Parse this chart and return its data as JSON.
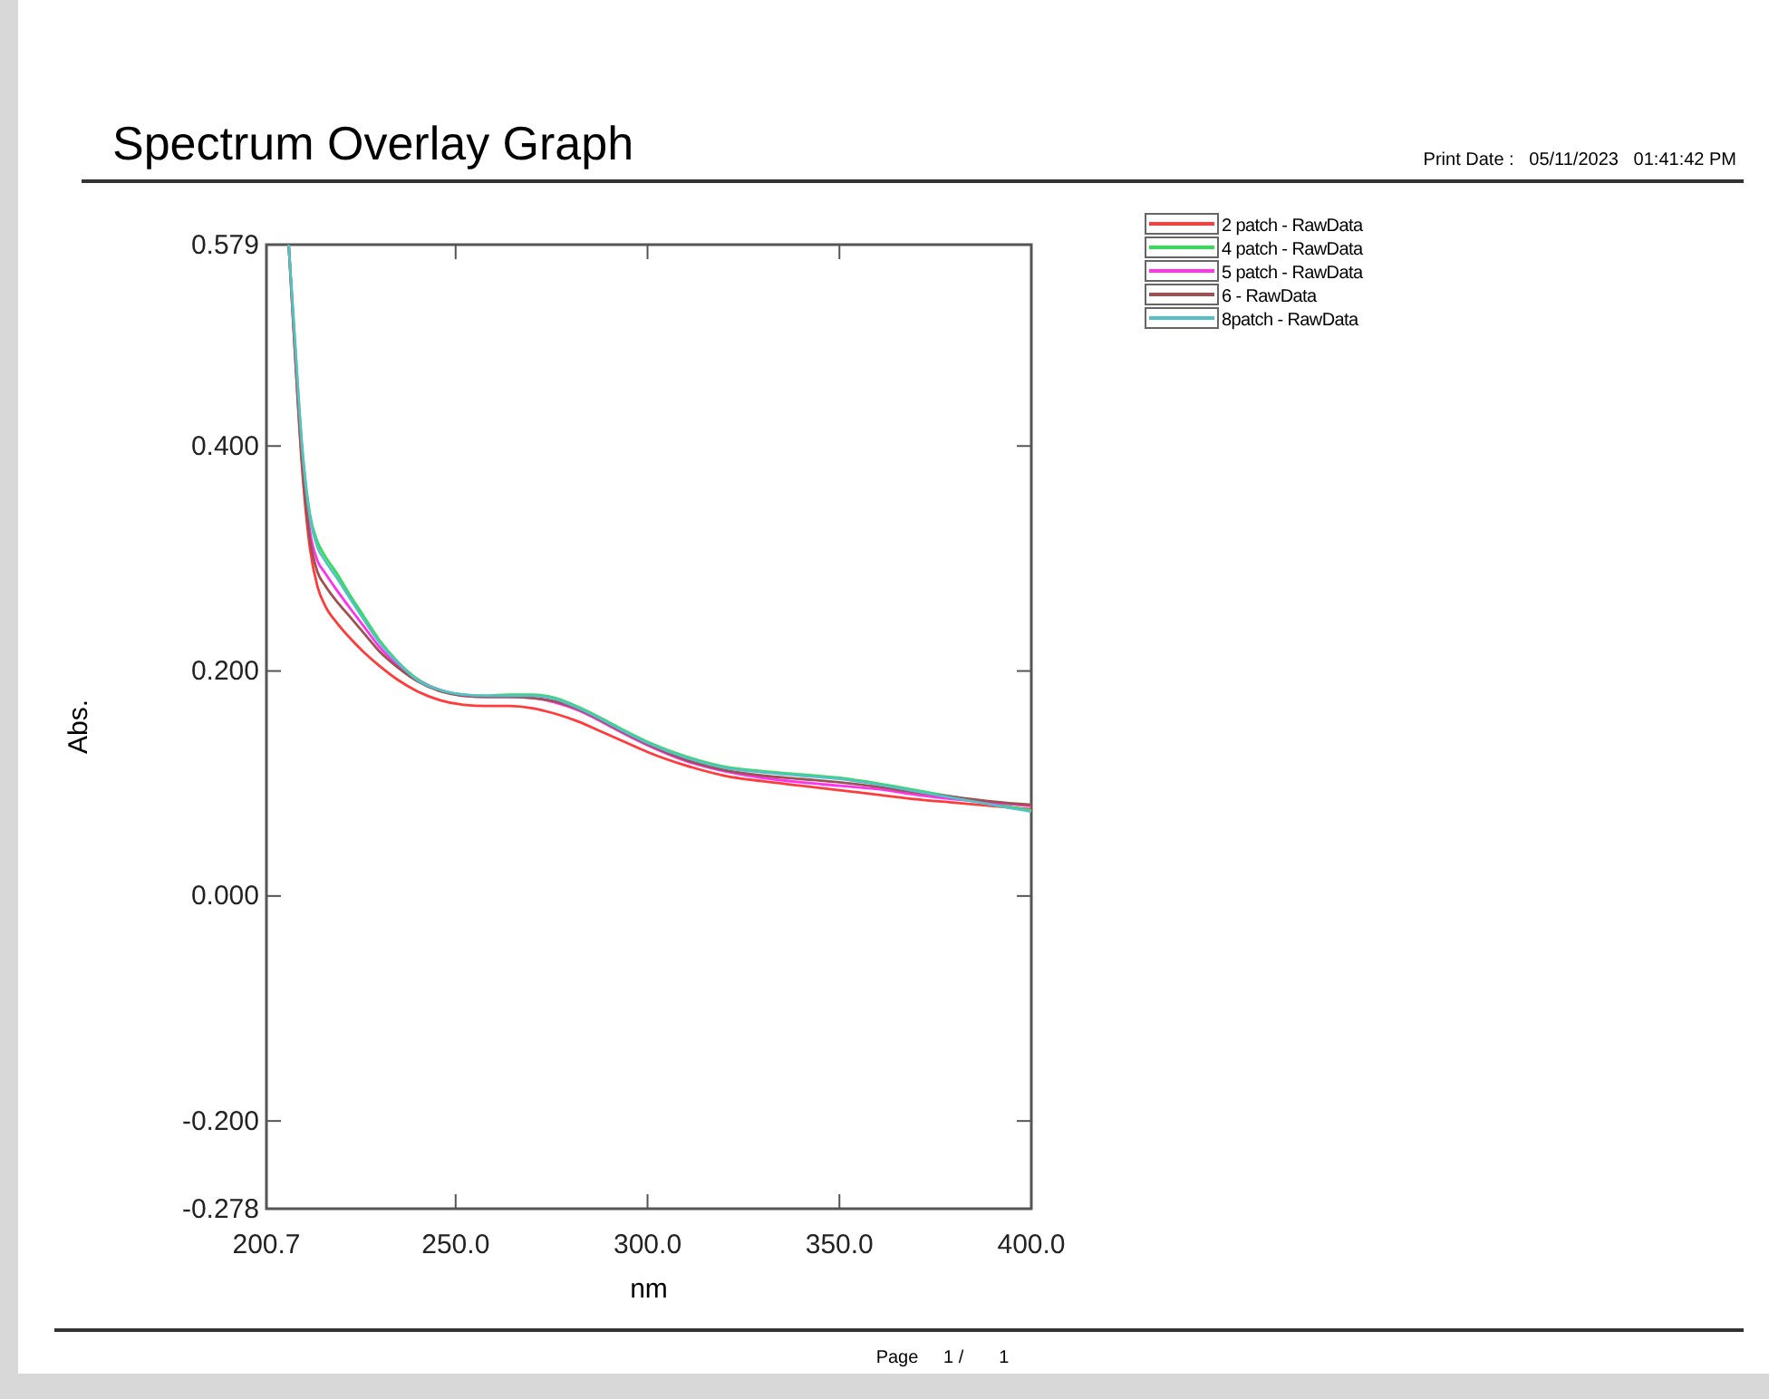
{
  "chart_data": {
    "type": "line",
    "title": "Spectrum Overlay Graph",
    "xlabel": "nm",
    "ylabel": "Abs.",
    "annotations": [
      "Print Date :   05/11/2023   01:41:42 PM",
      "Page     1 /       1"
    ],
    "x": [
      206.5,
      208,
      210,
      212,
      214,
      216,
      219,
      222,
      226,
      230,
      235,
      240,
      246,
      252,
      258,
      264,
      270,
      276,
      282,
      288,
      294,
      300,
      310,
      320,
      330,
      340,
      350,
      360,
      370,
      380,
      390,
      400
    ],
    "series": [
      {
        "name": "2 patch - RawData",
        "color": "#ff3b3b",
        "values": [
          0.579,
          0.49,
          0.38,
          0.31,
          0.275,
          0.258,
          0.243,
          0.231,
          0.217,
          0.205,
          0.192,
          0.182,
          0.174,
          0.17,
          0.169,
          0.169,
          0.167,
          0.162,
          0.155,
          0.146,
          0.137,
          0.128,
          0.116,
          0.107,
          0.102,
          0.098,
          0.094,
          0.09,
          0.086,
          0.083,
          0.08,
          0.077
        ]
      },
      {
        "name": "4 patch - RawData",
        "color": "#33dd55",
        "values": [
          0.579,
          0.5,
          0.4,
          0.34,
          0.315,
          0.302,
          0.287,
          0.27,
          0.249,
          0.228,
          0.208,
          0.193,
          0.183,
          0.179,
          0.178,
          0.179,
          0.179,
          0.176,
          0.168,
          0.158,
          0.147,
          0.137,
          0.124,
          0.115,
          0.111,
          0.108,
          0.105,
          0.1,
          0.094,
          0.088,
          0.082,
          0.076
        ]
      },
      {
        "name": "5 patch - RawData",
        "color": "#ff33ee",
        "values": [
          null,
          null,
          0.39,
          0.325,
          0.298,
          0.287,
          0.272,
          0.258,
          0.24,
          0.222,
          0.205,
          0.192,
          0.183,
          0.178,
          0.177,
          0.177,
          0.176,
          0.172,
          0.165,
          0.155,
          0.144,
          0.134,
          0.12,
          0.111,
          0.105,
          0.101,
          0.098,
          0.095,
          0.09,
          0.086,
          0.083,
          0.08
        ]
      },
      {
        "name": "6 - RawData",
        "color": "#a05050",
        "values": [
          0.579,
          0.492,
          0.385,
          0.318,
          0.288,
          0.276,
          0.262,
          0.25,
          0.234,
          0.218,
          0.203,
          0.191,
          0.182,
          0.178,
          0.177,
          0.177,
          0.176,
          0.173,
          0.166,
          0.156,
          0.145,
          0.135,
          0.121,
          0.112,
          0.107,
          0.104,
          0.101,
          0.097,
          0.092,
          0.088,
          0.084,
          0.081
        ]
      },
      {
        "name": "8patch - RawData",
        "color": "#55c0c8",
        "values": [
          0.579,
          0.5,
          0.398,
          0.337,
          0.31,
          0.298,
          0.283,
          0.267,
          0.246,
          0.226,
          0.207,
          0.192,
          0.183,
          0.179,
          0.178,
          0.178,
          0.178,
          0.175,
          0.167,
          0.157,
          0.146,
          0.136,
          0.123,
          0.114,
          0.11,
          0.107,
          0.104,
          0.099,
          0.093,
          0.087,
          0.081,
          0.075
        ]
      }
    ],
    "xlim": [
      200.7,
      400
    ],
    "xticks": [
      {
        "value": 200.7,
        "label": "200.7"
      },
      {
        "value": 250,
        "label": "250.0"
      },
      {
        "value": 300,
        "label": "300.0"
      },
      {
        "value": 350,
        "label": "350.0"
      },
      {
        "value": 400,
        "label": "400.0"
      }
    ],
    "ylim": [
      -0.278,
      0.579
    ],
    "yticks": [
      {
        "value": -0.278,
        "label": "-0.278"
      },
      {
        "value": -0.2,
        "label": "-0.200"
      },
      {
        "value": 0,
        "label": "0.000"
      },
      {
        "value": 0.2,
        "label": "0.200"
      },
      {
        "value": 0.4,
        "label": "0.400"
      },
      {
        "value": 0.579,
        "label": "0.579"
      }
    ],
    "legend": "top right",
    "grid": false
  }
}
